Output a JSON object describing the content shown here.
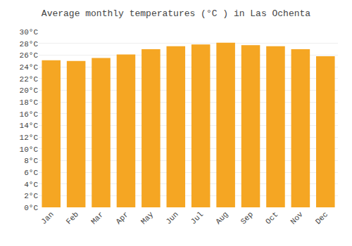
{
  "chart_data": {
    "type": "bar",
    "title": "Average monthly temperatures (°C ) in Las Ochenta",
    "categories": [
      "Jan",
      "Feb",
      "Mar",
      "Apr",
      "May",
      "Jun",
      "Jul",
      "Aug",
      "Sep",
      "Oct",
      "Nov",
      "Dec"
    ],
    "values": [
      25.1,
      25.0,
      25.5,
      26.1,
      27.0,
      27.5,
      27.8,
      28.1,
      27.7,
      27.5,
      27.0,
      25.8
    ],
    "color": "#F5A623",
    "ylim": [
      0,
      30
    ],
    "yticks": [
      {
        "value": 0,
        "label": "0°C"
      },
      {
        "value": 2,
        "label": "2°C"
      },
      {
        "value": 4,
        "label": "4°C"
      },
      {
        "value": 6,
        "label": "6°C"
      },
      {
        "value": 8,
        "label": "8°C"
      },
      {
        "value": 10,
        "label": "10°C"
      },
      {
        "value": 12,
        "label": "12°C"
      },
      {
        "value": 14,
        "label": "14°C"
      },
      {
        "value": 16,
        "label": "16°C"
      },
      {
        "value": 18,
        "label": "18°C"
      },
      {
        "value": 20,
        "label": "20°C"
      },
      {
        "value": 22,
        "label": "22°C"
      },
      {
        "value": 24,
        "label": "24°C"
      },
      {
        "value": 26,
        "label": "26°C"
      },
      {
        "value": 28,
        "label": "28°C"
      },
      {
        "value": 30,
        "label": "30°C"
      }
    ],
    "grid": true
  }
}
